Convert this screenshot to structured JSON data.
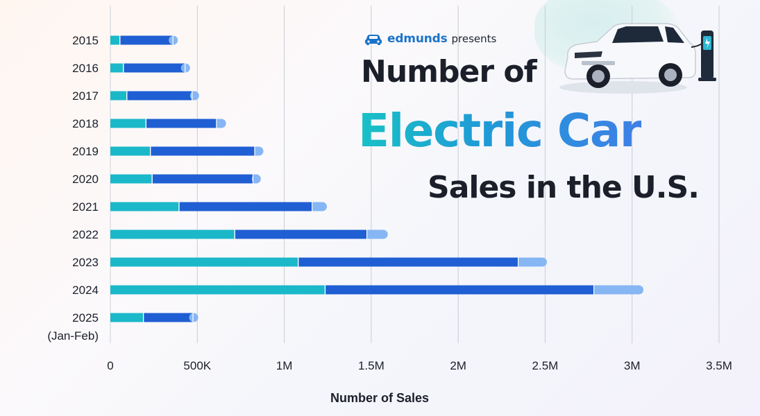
{
  "header": {
    "brand": "edmunds",
    "presents": "presents",
    "title_line1": "Number of",
    "title_line2": "Electric Car",
    "title_line3": "Sales in the U.S."
  },
  "colors": {
    "segment_1": "#1ab8c9",
    "segment_2": "#1f5fd3",
    "segment_3": "#86b6f3",
    "title_gradient_start": "#18c1c6",
    "title_gradient_end": "#3f7fe6",
    "brand": "#1a73c9",
    "text": "#1b1f2a"
  },
  "icons": [
    "car-logo-icon",
    "electric-suv-illustration",
    "charging-station-icon"
  ],
  "chart_data": {
    "type": "bar",
    "orientation": "horizontal",
    "stacked": true,
    "categories": [
      "2015",
      "2016",
      "2017",
      "2018",
      "2019",
      "2020",
      "2021",
      "2022",
      "2023",
      "2024",
      "2025"
    ],
    "category_sublabels": [
      "",
      "",
      "",
      "",
      "",
      "",
      "",
      "",
      "",
      "",
      "(Jan-Feb)"
    ],
    "series": [
      {
        "values": [
          55000,
          75000,
          95000,
          205000,
          230000,
          240000,
          395000,
          715000,
          1080000,
          1235000,
          190000
        ]
      },
      {
        "values": [
          305000,
          355000,
          375000,
          405000,
          600000,
          580000,
          765000,
          760000,
          1265000,
          1545000,
          285000
        ]
      },
      {
        "values": [
          20000,
          25000,
          40000,
          55000,
          50000,
          45000,
          85000,
          120000,
          165000,
          285000,
          30000
        ]
      }
    ],
    "xlabel": "Number of Sales",
    "ylabel": "",
    "xlim": [
      0,
      3500000
    ],
    "xticks": [
      {
        "value": 0,
        "label": "0"
      },
      {
        "value": 500000,
        "label": "500K"
      },
      {
        "value": 1000000,
        "label": "1M"
      },
      {
        "value": 1500000,
        "label": "1.5M"
      },
      {
        "value": 2000000,
        "label": "2M"
      },
      {
        "value": 2500000,
        "label": "2.5M"
      },
      {
        "value": 3000000,
        "label": "3M"
      },
      {
        "value": 3500000,
        "label": "3.5M"
      }
    ],
    "grid": "vertical",
    "legend": "none"
  }
}
